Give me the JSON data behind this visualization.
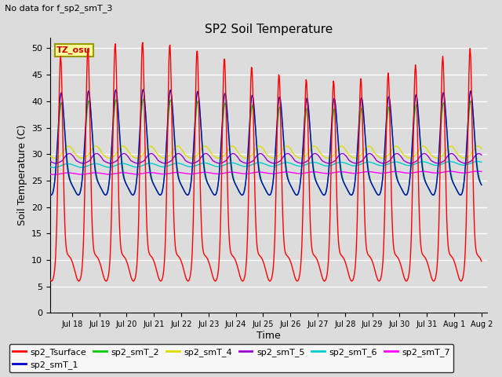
{
  "title": "SP2 Soil Temperature",
  "subtitle": "No data for f_sp2_smT_3",
  "xlabel": "Time",
  "ylabel": "Soil Temperature (C)",
  "tz_label": "TZ_osu",
  "ylim": [
    0,
    52
  ],
  "yticks": [
    0,
    5,
    10,
    15,
    20,
    25,
    30,
    35,
    40,
    45,
    50
  ],
  "x_tick_labels": [
    "Jul 18",
    "Jul 19",
    "Jul 20",
    "Jul 21",
    "Jul 22",
    "Jul 23",
    "Jul 24",
    "Jul 25",
    "Jul 26",
    "Jul 27",
    "Jul 28",
    "Jul 29",
    "Jul 30",
    "Jul 31",
    "Aug 1",
    "Aug 2"
  ],
  "bg_color": "#dcdcdc",
  "grid_color": "#ffffff",
  "series_colors": {
    "sp2_Tsurface": "#ff0000",
    "sp2_smT_1": "#0000cc",
    "sp2_smT_2": "#00cc00",
    "sp2_smT_4": "#dddd00",
    "sp2_smT_5": "#9900cc",
    "sp2_smT_6": "#00cccc",
    "sp2_smT_7": "#ff00ff"
  }
}
